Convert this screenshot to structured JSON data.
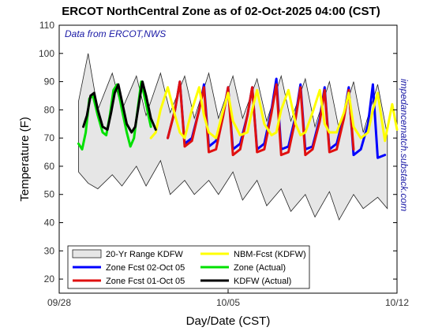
{
  "chart_data": {
    "type": "line",
    "title": "ERCOT NorthCentral Zone as of 02-Oct-2025 04:00 (CST)",
    "xlabel": "Day/Date (CST)",
    "ylabel": "Temperature (F)",
    "source_note": "Data from ERCOT,NWS",
    "watermark": "impedancematch.substack.com",
    "ylim": [
      15,
      110
    ],
    "yticks": [
      20,
      30,
      40,
      50,
      60,
      70,
      80,
      90,
      100,
      110
    ],
    "xlim_days": [
      0,
      14
    ],
    "xticks": [
      {
        "day": 0,
        "label": "09/28"
      },
      {
        "day": 7,
        "label": "10/05"
      },
      {
        "day": 14,
        "label": "10/12"
      }
    ],
    "grid": false,
    "legend_position": "bottom-left",
    "range_band": {
      "name": "20-Yr Range KDFW",
      "color": "#e6e6e6",
      "days": [
        0.8,
        1.2,
        1.6,
        2.2,
        2.6,
        3.2,
        3.6,
        4.2,
        4.6,
        5.2,
        5.6,
        6.2,
        6.6,
        7.2,
        7.6,
        8.2,
        8.6,
        9.2,
        9.6,
        10.2,
        10.6,
        11.2,
        11.6,
        12.2,
        12.6,
        13.2,
        13.6
      ],
      "upper": [
        83,
        100,
        80,
        93,
        80,
        92,
        78,
        93,
        79,
        92,
        77,
        93,
        77,
        92,
        77,
        91,
        76,
        92,
        76,
        91,
        74,
        90,
        73,
        90,
        72,
        89,
        71
      ],
      "lower": [
        58,
        54,
        52,
        57,
        53,
        60,
        53,
        62,
        50,
        55,
        50,
        55,
        50,
        58,
        48,
        55,
        46,
        52,
        44,
        50,
        42,
        51,
        41,
        50,
        45,
        49,
        45
      ]
    },
    "series": [
      {
        "name": "Zone Fcst 02-Oct 05",
        "color": "#0000ff",
        "days": [
          4.5,
          4.8,
          5.0,
          5.2,
          5.5,
          5.8,
          6.0,
          6.2,
          6.5,
          6.8,
          7.0,
          7.2,
          7.5,
          7.8,
          8.0,
          8.2,
          8.5,
          8.8,
          9.0,
          9.2,
          9.5,
          9.8,
          10.0,
          10.2,
          10.5,
          10.8,
          11.0,
          11.2,
          11.5,
          11.8,
          12.0,
          12.2,
          12.5,
          12.8,
          13.0,
          13.2,
          13.5
        ],
        "values": [
          70,
          80,
          90,
          68,
          70,
          80,
          89,
          67,
          69,
          79,
          88,
          66,
          68,
          78,
          88,
          66,
          68,
          80,
          91,
          66,
          67,
          78,
          89,
          66,
          67,
          77,
          88,
          66,
          68,
          78,
          88,
          64,
          66,
          75,
          89,
          63,
          64
        ]
      },
      {
        "name": "Zone Fcst 01-Oct 05",
        "color": "#e01010",
        "days": [
          4.5,
          4.8,
          5.0,
          5.2,
          5.5,
          5.8,
          6.0,
          6.2,
          6.5,
          6.8,
          7.0,
          7.2,
          7.5,
          7.8,
          8.0,
          8.2,
          8.5,
          8.8,
          9.0,
          9.2,
          9.5,
          9.8,
          10.0,
          10.2,
          10.5,
          10.8,
          11.0,
          11.2,
          11.5,
          11.8,
          12.0,
          12.2
        ],
        "values": [
          70,
          80,
          90,
          67,
          69,
          80,
          88,
          65,
          66,
          78,
          88,
          64,
          66,
          78,
          88,
          65,
          66,
          79,
          89,
          64,
          65,
          77,
          88,
          64,
          66,
          76,
          87,
          65,
          66,
          77,
          87,
          66
        ]
      },
      {
        "name": "NBM-Fcst (KDFW)",
        "color": "#ffff00",
        "days": [
          3.8,
          4.0,
          4.2,
          4.5,
          4.8,
          5.0,
          5.2,
          5.5,
          5.8,
          6.0,
          6.2,
          6.5,
          6.8,
          7.0,
          7.2,
          7.5,
          7.8,
          8.0,
          8.2,
          8.5,
          8.8,
          9.0,
          9.2,
          9.5,
          9.8,
          10.0,
          10.2,
          10.5,
          10.8,
          11.0,
          11.2,
          11.5,
          11.8,
          12.0,
          12.2,
          12.5,
          12.8,
          13.0,
          13.2,
          13.5,
          13.8,
          14.0
        ],
        "values": [
          70,
          72,
          80,
          88,
          78,
          72,
          70,
          80,
          88,
          78,
          72,
          70,
          80,
          86,
          76,
          71,
          72,
          80,
          87,
          75,
          71,
          72,
          80,
          87,
          75,
          71,
          72,
          79,
          87,
          75,
          72,
          72,
          79,
          86,
          74,
          70,
          72,
          80,
          86,
          69,
          82,
          73
        ]
      },
      {
        "name": "Zone (Actual)",
        "color": "#00e000",
        "days": [
          0.8,
          0.95,
          1.1,
          1.25,
          1.4,
          1.6,
          1.8,
          1.95,
          2.1,
          2.25,
          2.4,
          2.6,
          2.8,
          2.95,
          3.1,
          3.25,
          3.4,
          3.6,
          3.8
        ],
        "values": [
          68,
          66,
          72,
          84,
          85,
          78,
          72,
          71,
          78,
          87,
          89,
          80,
          72,
          67,
          70,
          80,
          90,
          82,
          74
        ]
      },
      {
        "name": "KDFW (Actual)",
        "color": "#000000",
        "days": [
          1.0,
          1.15,
          1.3,
          1.45,
          1.6,
          1.8,
          2.0,
          2.15,
          2.3,
          2.45,
          2.6,
          2.8,
          3.0,
          3.15,
          3.3,
          3.45,
          3.6,
          3.8,
          4.0
        ],
        "values": [
          74,
          78,
          85,
          86,
          80,
          74,
          73,
          79,
          86,
          89,
          83,
          75,
          72,
          74,
          82,
          90,
          85,
          77,
          73
        ]
      }
    ],
    "legend": [
      {
        "name": "20-Yr Range KDFW",
        "kind": "band",
        "color": "#e6e6e6"
      },
      {
        "name": "NBM-Fcst (KDFW)",
        "kind": "line",
        "color": "#ffff00"
      },
      {
        "name": "Zone Fcst 02-Oct 05",
        "kind": "line",
        "color": "#0000ff"
      },
      {
        "name": "Zone (Actual)",
        "kind": "line",
        "color": "#00e000"
      },
      {
        "name": "Zone Fcst 01-Oct 05",
        "kind": "line",
        "color": "#e01010"
      },
      {
        "name": "KDFW (Actual)",
        "kind": "line",
        "color": "#000000"
      }
    ]
  }
}
